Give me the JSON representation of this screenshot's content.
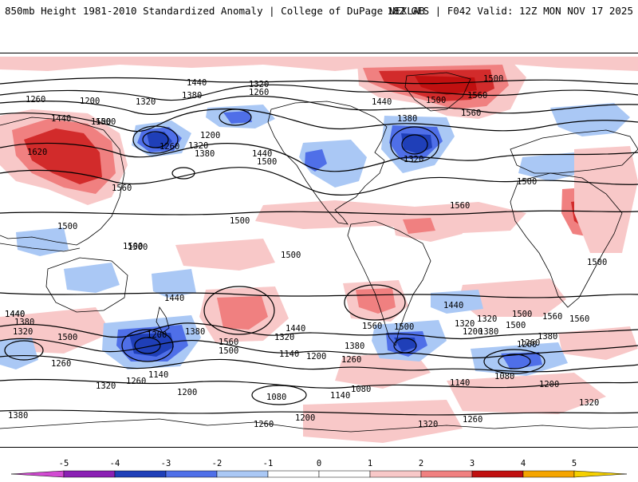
{
  "header": {
    "title_left": "850mb Height 1981-2010 Standardized Anomaly | College of DuPage NEXLAB",
    "title_right": "18Z GFS | F042 Valid: 12Z MON NOV 17 2025"
  },
  "colors": {
    "neg5": "#d24ad2",
    "neg4": "#8a1fb3",
    "neg3": "#1f3fb8",
    "neg2": "#4f6fe8",
    "neg1": "#aac8f5",
    "pos1": "#f8c8c8",
    "pos2": "#f08080",
    "pos3": "#d22b2b",
    "pos4": "#c01010",
    "pos5": "#f5a500",
    "contour": "#000000",
    "coast": "#000000"
  },
  "colorbar": {
    "ticks": [
      "-5",
      "-4",
      "-3",
      "-2",
      "-1",
      "0",
      "1",
      "2",
      "3",
      "4",
      "5"
    ]
  },
  "contour_labels": [
    "1440",
    "1320",
    "1260",
    "1200",
    "1380",
    "1320",
    "1260",
    "1440",
    "1500",
    "1620",
    "1560",
    "1200",
    "1260",
    "1320",
    "1380",
    "1440",
    "1500",
    "1440",
    "1380",
    "1320",
    "1560",
    "1500",
    "1560",
    "1560",
    "1500",
    "1500",
    "1500",
    "1500",
    "1500",
    "1500",
    "1560",
    "1560",
    "1440",
    "1380",
    "1320",
    "1500",
    "1440",
    "1200",
    "1380",
    "1260",
    "1140",
    "1560",
    "1500",
    "1440",
    "1320",
    "1140",
    "1200",
    "1380",
    "1260",
    "1500",
    "1440",
    "1320",
    "1200",
    "1560",
    "1500",
    "1380",
    "1260",
    "1320",
    "1260",
    "1200",
    "1140",
    "1080",
    "1080",
    "1140",
    "1080",
    "1200",
    "1320",
    "1200",
    "1260",
    "1320",
    "1380",
    "1260",
    "1500",
    "1440",
    "1380",
    "1320",
    "1260",
    "1500",
    "1500",
    "1500"
  ]
}
